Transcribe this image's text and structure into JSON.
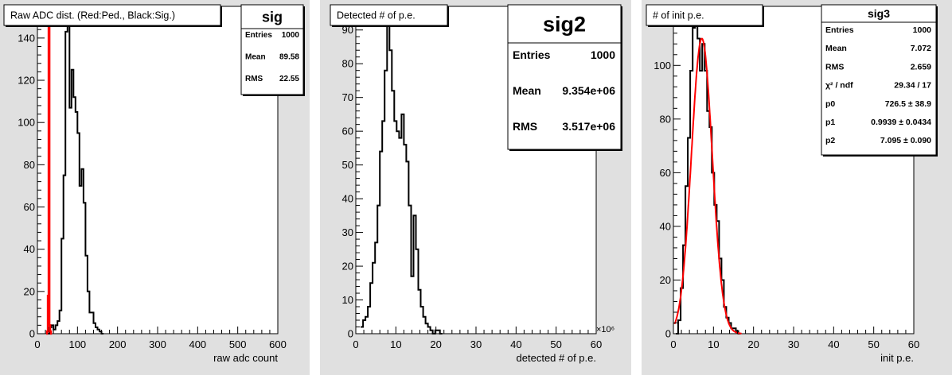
{
  "chart_data": [
    {
      "type": "histogram",
      "title": "Raw ADC dist. (Red:Ped., Black:Sig.)",
      "xlabel": "raw adc count",
      "ylabel": "",
      "xlim": [
        0,
        600
      ],
      "ylim": [
        0,
        155
      ],
      "xticks": [
        "0",
        "100",
        "200",
        "300",
        "400",
        "500",
        "600"
      ],
      "yticks": [
        "0",
        "20",
        "40",
        "60",
        "80",
        "100",
        "120",
        "140"
      ],
      "multiplier": "",
      "stats": {
        "name": "sig",
        "rows": [
          {
            "label": "Entries",
            "value": "1000"
          },
          {
            "label": "Mean",
            "value": "89.58"
          },
          {
            "label": "RMS",
            "value": "22.55"
          }
        ]
      },
      "series": [
        {
          "name": "Sig.",
          "color": "#000000",
          "bin_width": 5,
          "bins": [
            [
              25,
              0
            ],
            [
              30,
              3
            ],
            [
              35,
              4
            ],
            [
              40,
              2
            ],
            [
              45,
              4
            ],
            [
              50,
              6
            ],
            [
              55,
              11
            ],
            [
              60,
              45
            ],
            [
              65,
              75
            ],
            [
              70,
              143
            ],
            [
              75,
              150
            ],
            [
              80,
              107
            ],
            [
              85,
              125
            ],
            [
              90,
              112
            ],
            [
              95,
              105
            ],
            [
              100,
              95
            ],
            [
              105,
              70
            ],
            [
              110,
              78
            ],
            [
              115,
              62
            ],
            [
              120,
              37
            ],
            [
              125,
              20
            ],
            [
              130,
              10
            ],
            [
              135,
              10
            ],
            [
              140,
              5
            ],
            [
              145,
              3
            ],
            [
              150,
              2
            ],
            [
              155,
              1
            ],
            [
              160,
              0
            ]
          ]
        },
        {
          "name": "Ped.",
          "color": "#ff0000",
          "bin_width": 2,
          "bins": [
            [
              22,
              0
            ],
            [
              24,
              1
            ],
            [
              26,
              18
            ],
            [
              28,
              155
            ],
            [
              30,
              4
            ],
            [
              32,
              1
            ],
            [
              34,
              0
            ]
          ]
        }
      ]
    },
    {
      "type": "histogram",
      "title": "Detected # of p.e.",
      "xlabel": "detected # of p.e.",
      "ylabel": "",
      "xlim": [
        0,
        60
      ],
      "ylim": [
        0,
        97
      ],
      "xticks": [
        "0",
        "10",
        "20",
        "30",
        "40",
        "50",
        "60"
      ],
      "yticks": [
        "0",
        "10",
        "20",
        "30",
        "40",
        "50",
        "60",
        "70",
        "80",
        "90"
      ],
      "multiplier": "×10⁶",
      "stats": {
        "name": "sig2",
        "rows": [
          {
            "label": "Entries",
            "value": "1000"
          },
          {
            "label": "Mean",
            "value": "9.354e+06"
          },
          {
            "label": "RMS",
            "value": "3.517e+06"
          }
        ]
      },
      "series": [
        {
          "name": "",
          "color": "#000000",
          "bin_width": 0.6,
          "bins": [
            [
              1.2,
              2
            ],
            [
              1.8,
              4
            ],
            [
              2.4,
              5
            ],
            [
              3.0,
              8
            ],
            [
              3.6,
              15
            ],
            [
              4.2,
              21
            ],
            [
              4.8,
              27
            ],
            [
              5.4,
              38
            ],
            [
              6.0,
              54
            ],
            [
              6.6,
              63
            ],
            [
              7.2,
              78
            ],
            [
              7.8,
              92
            ],
            [
              8.4,
              84
            ],
            [
              9.0,
              72
            ],
            [
              9.6,
              63
            ],
            [
              10.2,
              60
            ],
            [
              10.8,
              58
            ],
            [
              11.4,
              65
            ],
            [
              12.0,
              56
            ],
            [
              12.6,
              51
            ],
            [
              13.2,
              38
            ],
            [
              13.8,
              17
            ],
            [
              14.4,
              35
            ],
            [
              15.0,
              25
            ],
            [
              15.6,
              13
            ],
            [
              16.2,
              8
            ],
            [
              16.8,
              5
            ],
            [
              17.4,
              3
            ],
            [
              18.0,
              2
            ],
            [
              18.6,
              1
            ],
            [
              19.2,
              0
            ],
            [
              19.8,
              1
            ],
            [
              20.4,
              1
            ],
            [
              21.0,
              0
            ]
          ]
        }
      ]
    },
    {
      "type": "histogram",
      "title": "# of init p.e.",
      "xlabel": "init p.e.",
      "ylabel": "",
      "xlim": [
        0,
        60
      ],
      "ylim": [
        0,
        122
      ],
      "xticks": [
        "0",
        "10",
        "20",
        "30",
        "40",
        "50",
        "60"
      ],
      "yticks": [
        "0",
        "20",
        "40",
        "60",
        "80",
        "100",
        "120"
      ],
      "multiplier": "",
      "stats": {
        "name": "sig3",
        "rows": [
          {
            "label": "Entries",
            "value": "1000"
          },
          {
            "label": "Mean",
            "value": "7.072"
          },
          {
            "label": "RMS",
            "value": "2.659"
          },
          {
            "label": "χ² / ndf",
            "value": "29.34 / 17"
          },
          {
            "label": "p0",
            "value": "726.5 ± 38.9"
          },
          {
            "label": "p1",
            "value": "0.9939 ± 0.0434"
          },
          {
            "label": "p2",
            "value": "7.095 ± 0.090"
          }
        ]
      },
      "series": [
        {
          "name": "",
          "color": "#000000",
          "bin_width": 0.6,
          "bins": [
            [
              0.6,
              0
            ],
            [
              1.2,
              5
            ],
            [
              1.8,
              17
            ],
            [
              2.4,
              33
            ],
            [
              3.0,
              55
            ],
            [
              3.6,
              73
            ],
            [
              4.2,
              98
            ],
            [
              4.8,
              114
            ],
            [
              5.4,
              116
            ],
            [
              6.0,
              110
            ],
            [
              6.6,
              98
            ],
            [
              7.2,
              108
            ],
            [
              7.8,
              98
            ],
            [
              8.4,
              83
            ],
            [
              9.0,
              77
            ],
            [
              9.6,
              60
            ],
            [
              10.2,
              48
            ],
            [
              10.8,
              42
            ],
            [
              11.4,
              28
            ],
            [
              12.0,
              20
            ],
            [
              12.6,
              10
            ],
            [
              13.2,
              6
            ],
            [
              13.8,
              4
            ],
            [
              14.4,
              2
            ],
            [
              15.0,
              2
            ],
            [
              15.6,
              1
            ],
            [
              16.2,
              0
            ]
          ]
        }
      ],
      "fit": {
        "type": "gaussian",
        "color": "#ff0000",
        "amplitude": 110,
        "mean": 7.095,
        "sigma": 2.6,
        "range": [
          0.3,
          17
        ]
      }
    }
  ]
}
